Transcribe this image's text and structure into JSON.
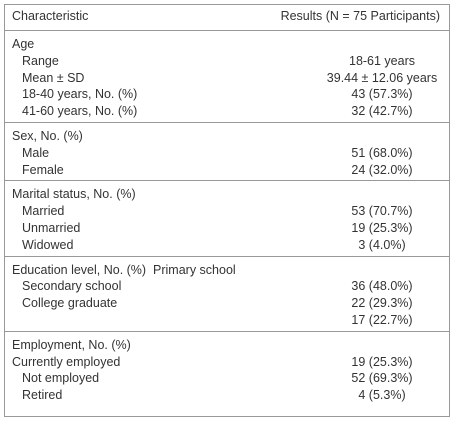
{
  "header": {
    "characteristic": "Characteristic",
    "results": "Results (N = 75 Participants)"
  },
  "sections": [
    {
      "rows": [
        {
          "kind": "heading",
          "label": "Age"
        },
        {
          "kind": "item",
          "label": "Range",
          "value": "18-61 years"
        },
        {
          "kind": "item",
          "label": "Mean ± SD",
          "value": "39.44 ± 12.06 years"
        },
        {
          "kind": "item",
          "label": "18-40 years, No. (%)",
          "value": "43 (57.3%)"
        },
        {
          "kind": "item",
          "label": "41-60 years, No. (%)",
          "value": "32 (42.7%)"
        }
      ]
    },
    {
      "rows": [
        {
          "kind": "heading",
          "label": "Sex, No. (%)"
        },
        {
          "kind": "item",
          "label": "Male",
          "value": "51 (68.0%)"
        },
        {
          "kind": "item",
          "label": "Female",
          "value": "24 (32.0%)"
        }
      ]
    },
    {
      "rows": [
        {
          "kind": "heading",
          "label": "Marital status, No. (%)"
        },
        {
          "kind": "item",
          "label": "Married",
          "value": "53 (70.7%)"
        },
        {
          "kind": "item",
          "label": "Unmarried",
          "value": "19 (25.3%)"
        },
        {
          "kind": "item",
          "label": "Widowed",
          "value": "3 (4.0%)"
        }
      ]
    },
    {
      "rows": [
        {
          "kind": "heading",
          "label": "Education level, No. (%)  Primary school"
        },
        {
          "kind": "item",
          "label": "Secondary school",
          "value": "36 (48.0%)"
        },
        {
          "kind": "item",
          "label": "College graduate",
          "value": "22 (29.3%)"
        },
        {
          "kind": "item",
          "value": "17 (22.7%)"
        }
      ]
    },
    {
      "rows": [
        {
          "kind": "heading",
          "label": "Employment, No. (%)"
        },
        {
          "kind": "heading",
          "label": "Currently employed",
          "value": "19 (25.3%)"
        },
        {
          "kind": "item",
          "label": "Not employed",
          "value": "52 (69.3%)"
        },
        {
          "kind": "item",
          "label": "Retired",
          "value": "4 (5.3%)"
        }
      ]
    }
  ]
}
